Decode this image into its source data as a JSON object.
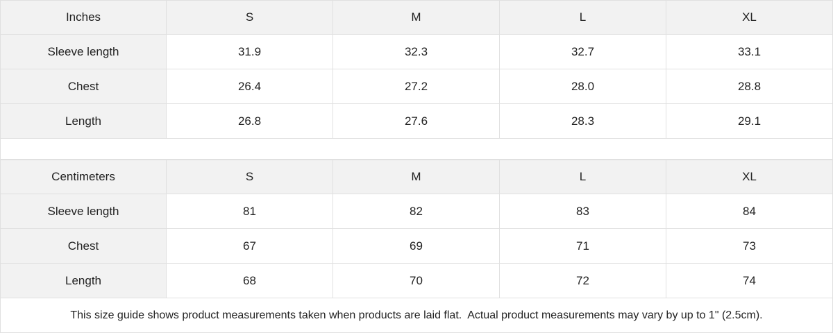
{
  "tables": [
    {
      "header": [
        "Inches",
        "S",
        "M",
        "L",
        "XL"
      ],
      "rows": [
        [
          "Sleeve length",
          "31.9",
          "32.3",
          "32.7",
          "33.1"
        ],
        [
          "Chest",
          "26.4",
          "27.2",
          "28.0",
          "28.8"
        ],
        [
          "Length",
          "26.8",
          "27.6",
          "28.3",
          "29.1"
        ]
      ]
    },
    {
      "header": [
        "Centimeters",
        "S",
        "M",
        "L",
        "XL"
      ],
      "rows": [
        [
          "Sleeve length",
          "81",
          "82",
          "83",
          "84"
        ],
        [
          "Chest",
          "67",
          "69",
          "71",
          "73"
        ],
        [
          "Length",
          "68",
          "70",
          "72",
          "74"
        ]
      ]
    }
  ],
  "note": "This size guide shows product measurements taken when products are laid flat.  Actual product measurements may vary by up to 1\" (2.5cm)."
}
